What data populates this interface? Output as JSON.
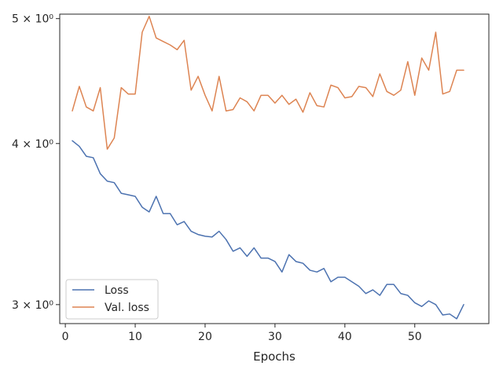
{
  "chart_data": {
    "type": "line",
    "title": "",
    "xlabel": "Epochs",
    "ylabel": "",
    "yscale": "log",
    "xlim": [
      -0.8,
      60.6
    ],
    "ylim": [
      2.9,
      5.04
    ],
    "grid": false,
    "legend": "lower-left",
    "x_ticks": [
      0,
      10,
      20,
      30,
      40,
      50
    ],
    "y_ticks": [
      {
        "value": 3,
        "label": "3 × 10⁰"
      },
      {
        "value": 4,
        "label": "4 × 10⁰"
      },
      {
        "value": 5,
        "label": "5 × 10⁰"
      }
    ],
    "x": [
      1,
      2,
      3,
      4,
      5,
      6,
      7,
      8,
      9,
      10,
      11,
      12,
      13,
      14,
      15,
      16,
      17,
      18,
      19,
      20,
      21,
      22,
      23,
      24,
      25,
      26,
      27,
      28,
      29,
      30,
      31,
      32,
      33,
      34,
      35,
      36,
      37,
      38,
      39,
      40,
      41,
      42,
      43,
      44,
      45,
      46,
      47,
      48,
      49,
      50,
      51,
      52,
      53,
      54,
      55,
      56,
      57
    ],
    "series": [
      {
        "name": "Loss",
        "color": "#4c72b0",
        "values": [
          4.02,
          3.98,
          3.91,
          3.9,
          3.79,
          3.74,
          3.73,
          3.66,
          3.65,
          3.64,
          3.57,
          3.54,
          3.64,
          3.53,
          3.53,
          3.46,
          3.48,
          3.42,
          3.4,
          3.39,
          3.385,
          3.42,
          3.37,
          3.3,
          3.32,
          3.27,
          3.32,
          3.26,
          3.26,
          3.24,
          3.18,
          3.28,
          3.24,
          3.23,
          3.19,
          3.18,
          3.2,
          3.125,
          3.15,
          3.15,
          3.125,
          3.1,
          3.06,
          3.08,
          3.05,
          3.11,
          3.11,
          3.06,
          3.05,
          3.01,
          2.99,
          3.02,
          3.0,
          2.945,
          2.95,
          2.925,
          3.0
        ]
      },
      {
        "name": "Val. loss",
        "color": "#dd8452",
        "values": [
          4.24,
          4.43,
          4.27,
          4.24,
          4.42,
          3.96,
          4.04,
          4.42,
          4.37,
          4.37,
          4.88,
          5.02,
          4.83,
          4.8,
          4.77,
          4.73,
          4.81,
          4.4,
          4.51,
          4.36,
          4.24,
          4.51,
          4.24,
          4.25,
          4.34,
          4.31,
          4.24,
          4.36,
          4.36,
          4.3,
          4.36,
          4.29,
          4.33,
          4.23,
          4.38,
          4.28,
          4.27,
          4.44,
          4.42,
          4.34,
          4.35,
          4.43,
          4.42,
          4.35,
          4.53,
          4.39,
          4.36,
          4.4,
          4.63,
          4.36,
          4.66,
          4.56,
          4.88,
          4.37,
          4.39,
          4.56,
          4.56
        ]
      }
    ]
  }
}
